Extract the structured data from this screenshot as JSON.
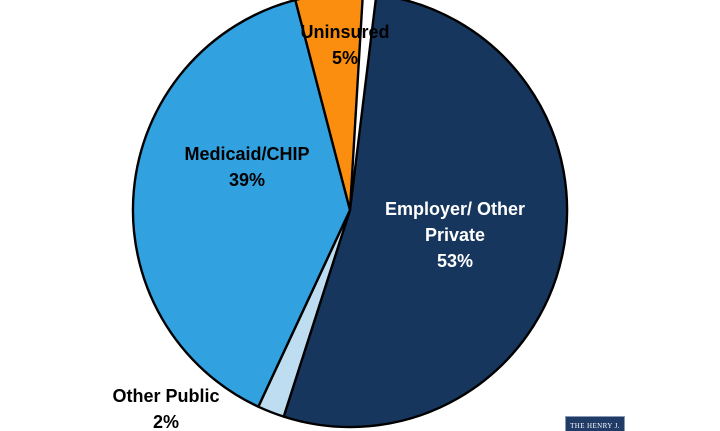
{
  "chart_data": {
    "type": "pie",
    "title": "",
    "start_angle_deg": 7,
    "stroke_color": "#000000",
    "background_color": "#FFFFFF",
    "legend_position": "none (labels on slices)",
    "segments": [
      {
        "id": "employer-other-private",
        "label": "Employer/ Other Private",
        "value_pct": 53,
        "color": "#17365D",
        "label_lines": [
          "Employer/ Other",
          "Private",
          "53%"
        ],
        "label_text_color": "#FFFFFF"
      },
      {
        "id": "other-public",
        "label": "Other Public",
        "value_pct": 2,
        "color": "#BEDDF0",
        "label_lines": [
          "Other Public",
          "2%"
        ],
        "label_text_color": "#000000"
      },
      {
        "id": "medicaid-chip",
        "label": "Medicaid/CHIP",
        "value_pct": 39,
        "color": "#31A1E0",
        "label_lines": [
          "Medicaid/CHIP",
          "39%"
        ],
        "label_text_color": "#000000"
      },
      {
        "id": "uninsured",
        "label": "Uninsured",
        "value_pct": 5,
        "color": "#FB8E0E",
        "label_lines": [
          "Uninsured",
          "5%"
        ],
        "label_text_color": "#000000"
      }
    ]
  },
  "logo": {
    "text": "THE HENRY J.",
    "bg_color": "#1F3B66",
    "text_color": "#FFFFFF"
  }
}
